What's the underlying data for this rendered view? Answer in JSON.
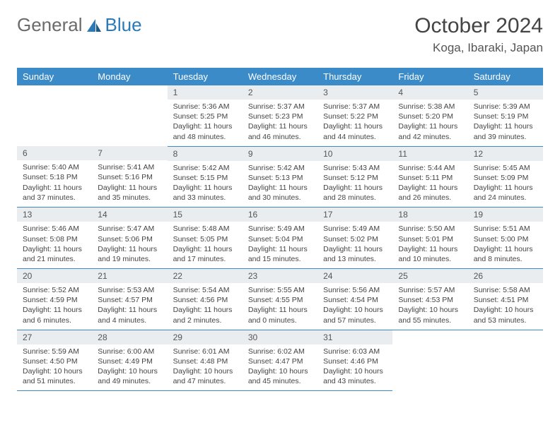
{
  "logo": {
    "text1": "General",
    "text2": "Blue"
  },
  "title": "October 2024",
  "location": "Koga, Ibaraki, Japan",
  "colors": {
    "headerBg": "#3b8bc9",
    "headerText": "#ffffff",
    "dayNumBg": "#e9edf0",
    "bodyText": "#444444",
    "logoGray": "#6b6b6b",
    "logoBlue": "#2a7ab8"
  },
  "weekdays": [
    "Sunday",
    "Monday",
    "Tuesday",
    "Wednesday",
    "Thursday",
    "Friday",
    "Saturday"
  ],
  "weeks": [
    [
      null,
      null,
      {
        "n": "1",
        "sr": "5:36 AM",
        "ss": "5:25 PM",
        "dl": "11 hours and 48 minutes."
      },
      {
        "n": "2",
        "sr": "5:37 AM",
        "ss": "5:23 PM",
        "dl": "11 hours and 46 minutes."
      },
      {
        "n": "3",
        "sr": "5:37 AM",
        "ss": "5:22 PM",
        "dl": "11 hours and 44 minutes."
      },
      {
        "n": "4",
        "sr": "5:38 AM",
        "ss": "5:20 PM",
        "dl": "11 hours and 42 minutes."
      },
      {
        "n": "5",
        "sr": "5:39 AM",
        "ss": "5:19 PM",
        "dl": "11 hours and 39 minutes."
      }
    ],
    [
      {
        "n": "6",
        "sr": "5:40 AM",
        "ss": "5:18 PM",
        "dl": "11 hours and 37 minutes."
      },
      {
        "n": "7",
        "sr": "5:41 AM",
        "ss": "5:16 PM",
        "dl": "11 hours and 35 minutes."
      },
      {
        "n": "8",
        "sr": "5:42 AM",
        "ss": "5:15 PM",
        "dl": "11 hours and 33 minutes."
      },
      {
        "n": "9",
        "sr": "5:42 AM",
        "ss": "5:13 PM",
        "dl": "11 hours and 30 minutes."
      },
      {
        "n": "10",
        "sr": "5:43 AM",
        "ss": "5:12 PM",
        "dl": "11 hours and 28 minutes."
      },
      {
        "n": "11",
        "sr": "5:44 AM",
        "ss": "5:11 PM",
        "dl": "11 hours and 26 minutes."
      },
      {
        "n": "12",
        "sr": "5:45 AM",
        "ss": "5:09 PM",
        "dl": "11 hours and 24 minutes."
      }
    ],
    [
      {
        "n": "13",
        "sr": "5:46 AM",
        "ss": "5:08 PM",
        "dl": "11 hours and 21 minutes."
      },
      {
        "n": "14",
        "sr": "5:47 AM",
        "ss": "5:06 PM",
        "dl": "11 hours and 19 minutes."
      },
      {
        "n": "15",
        "sr": "5:48 AM",
        "ss": "5:05 PM",
        "dl": "11 hours and 17 minutes."
      },
      {
        "n": "16",
        "sr": "5:49 AM",
        "ss": "5:04 PM",
        "dl": "11 hours and 15 minutes."
      },
      {
        "n": "17",
        "sr": "5:49 AM",
        "ss": "5:02 PM",
        "dl": "11 hours and 13 minutes."
      },
      {
        "n": "18",
        "sr": "5:50 AM",
        "ss": "5:01 PM",
        "dl": "11 hours and 10 minutes."
      },
      {
        "n": "19",
        "sr": "5:51 AM",
        "ss": "5:00 PM",
        "dl": "11 hours and 8 minutes."
      }
    ],
    [
      {
        "n": "20",
        "sr": "5:52 AM",
        "ss": "4:59 PM",
        "dl": "11 hours and 6 minutes."
      },
      {
        "n": "21",
        "sr": "5:53 AM",
        "ss": "4:57 PM",
        "dl": "11 hours and 4 minutes."
      },
      {
        "n": "22",
        "sr": "5:54 AM",
        "ss": "4:56 PM",
        "dl": "11 hours and 2 minutes."
      },
      {
        "n": "23",
        "sr": "5:55 AM",
        "ss": "4:55 PM",
        "dl": "11 hours and 0 minutes."
      },
      {
        "n": "24",
        "sr": "5:56 AM",
        "ss": "4:54 PM",
        "dl": "10 hours and 57 minutes."
      },
      {
        "n": "25",
        "sr": "5:57 AM",
        "ss": "4:53 PM",
        "dl": "10 hours and 55 minutes."
      },
      {
        "n": "26",
        "sr": "5:58 AM",
        "ss": "4:51 PM",
        "dl": "10 hours and 53 minutes."
      }
    ],
    [
      {
        "n": "27",
        "sr": "5:59 AM",
        "ss": "4:50 PM",
        "dl": "10 hours and 51 minutes."
      },
      {
        "n": "28",
        "sr": "6:00 AM",
        "ss": "4:49 PM",
        "dl": "10 hours and 49 minutes."
      },
      {
        "n": "29",
        "sr": "6:01 AM",
        "ss": "4:48 PM",
        "dl": "10 hours and 47 minutes."
      },
      {
        "n": "30",
        "sr": "6:02 AM",
        "ss": "4:47 PM",
        "dl": "10 hours and 45 minutes."
      },
      {
        "n": "31",
        "sr": "6:03 AM",
        "ss": "4:46 PM",
        "dl": "10 hours and 43 minutes."
      },
      null,
      null
    ]
  ],
  "labels": {
    "sunrise": "Sunrise:",
    "sunset": "Sunset:",
    "daylight": "Daylight:"
  }
}
